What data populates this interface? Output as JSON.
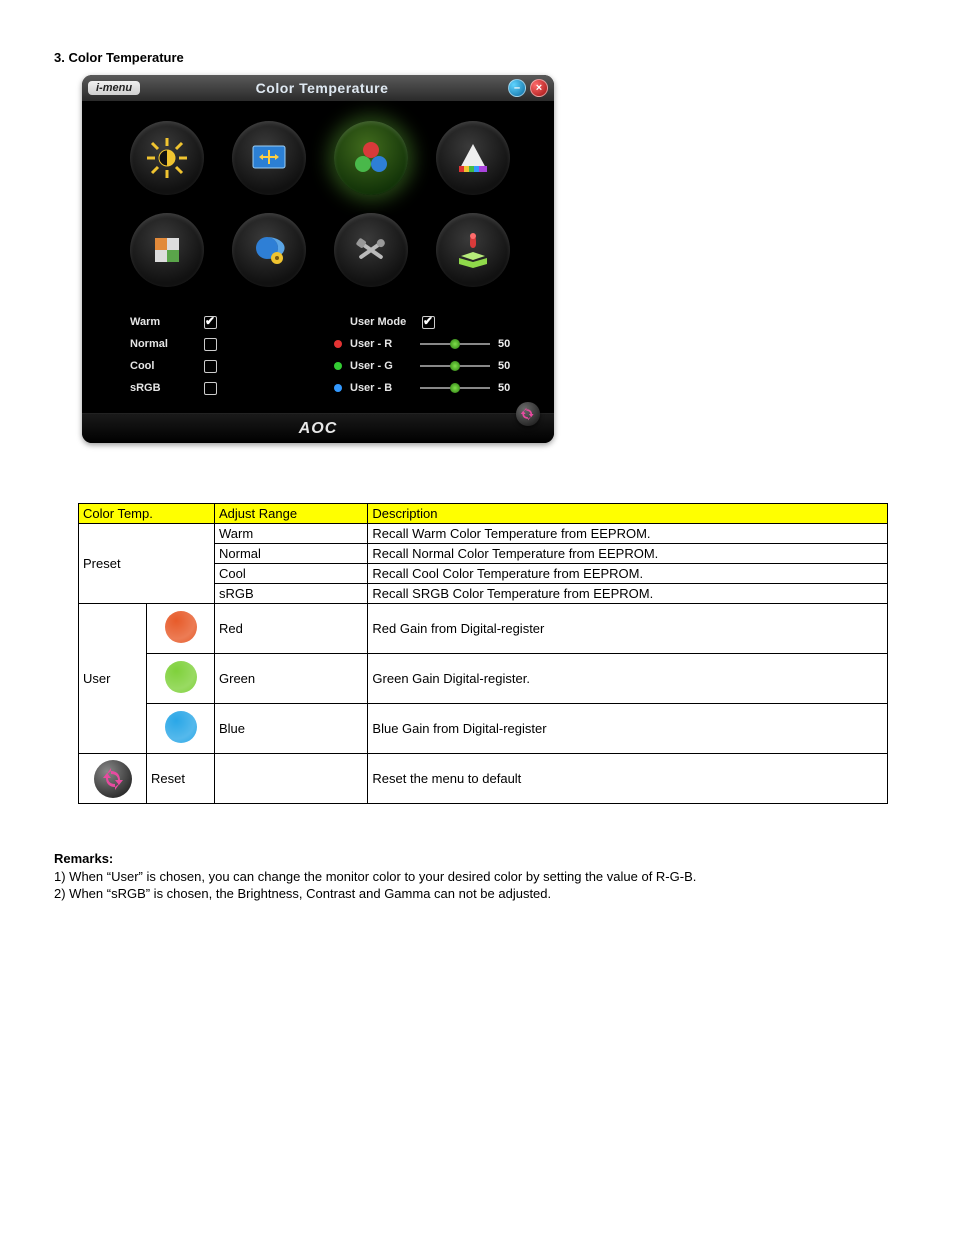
{
  "section_title": "3. Color Temperature",
  "osd": {
    "menu_chip": "i-menu",
    "title": "Color Temperature",
    "brand": "AOC",
    "presets": [
      {
        "label": "Warm",
        "checked": true
      },
      {
        "label": "Normal",
        "checked": false
      },
      {
        "label": "Cool",
        "checked": false
      },
      {
        "label": "sRGB",
        "checked": false
      }
    ],
    "user_mode": {
      "label": "User Mode",
      "checked": true
    },
    "user_channels": [
      {
        "label": "User - R",
        "dot_color": "#e33333",
        "value": 50
      },
      {
        "label": "User - G",
        "dot_color": "#33cc33",
        "value": 50
      },
      {
        "label": "User - B",
        "dot_color": "#3399ff",
        "value": 50
      }
    ],
    "slider_max": 100,
    "tiles": [
      {
        "name": "luminance-icon",
        "active": false
      },
      {
        "name": "image-setup-icon",
        "active": false
      },
      {
        "name": "color-temp-icon",
        "active": true
      },
      {
        "name": "color-boost-icon",
        "active": false
      },
      {
        "name": "picture-boost-icon",
        "active": false
      },
      {
        "name": "osd-setup-icon",
        "active": false
      },
      {
        "name": "extra-icon",
        "active": false
      },
      {
        "name": "exit-icon",
        "active": false
      }
    ]
  },
  "table": {
    "headers": [
      "Color Temp.",
      "Adjust Range",
      "Description"
    ],
    "preset_label": "Preset",
    "preset_rows": [
      {
        "range": "Warm",
        "desc": "Recall Warm Color Temperature from EEPROM."
      },
      {
        "range": "Normal",
        "desc": "Recall Normal Color Temperature from EEPROM."
      },
      {
        "range": "Cool",
        "desc": "Recall Cool Color Temperature from EEPROM."
      },
      {
        "range": "sRGB",
        "desc": "Recall SRGB Color Temperature from EEPROM."
      }
    ],
    "user_label": "User",
    "user_rows": [
      {
        "swatch": "#e75b2a",
        "range": "Red",
        "desc": "Red Gain from Digital-register"
      },
      {
        "swatch": "#7fd13b",
        "range": "Green",
        "desc": "Green Gain Digital-register."
      },
      {
        "swatch": "#2aa7e7",
        "range": "Blue",
        "desc": "Blue Gain from Digital-register"
      }
    ],
    "reset": {
      "label": "Reset",
      "desc": "Reset the menu to default"
    }
  },
  "remarks": {
    "title": "Remarks:",
    "lines": [
      "1) When “User” is chosen, you can change the monitor color to your desired color by setting the value of R-G-B.",
      "2) When “sRGB” is chosen, the Brightness, Contrast and Gamma can not be adjusted."
    ]
  },
  "colors": {
    "header_bg": "#ffff00",
    "osd_bg": "#000000",
    "accent_glow": "#7fe04a"
  }
}
